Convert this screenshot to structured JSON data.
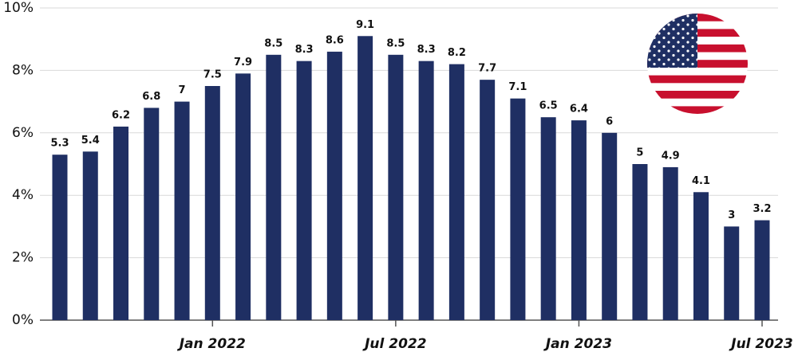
{
  "chart_data": {
    "type": "bar",
    "categories": [
      null,
      null,
      null,
      null,
      null,
      "Jan 2022",
      null,
      null,
      null,
      null,
      null,
      "Jul 2022",
      null,
      null,
      null,
      null,
      null,
      "Jan 2023",
      null,
      null,
      null,
      null,
      null,
      "Jul 2023"
    ],
    "values": [
      5.3,
      5.4,
      6.2,
      6.8,
      7,
      7.5,
      7.9,
      8.5,
      8.3,
      8.6,
      9.1,
      8.5,
      8.3,
      8.2,
      7.7,
      7.1,
      6.5,
      6.4,
      6,
      5,
      4.9,
      4.1,
      3,
      3.2
    ],
    "color": "#1f2f63",
    "ylim": [
      0,
      10
    ],
    "yticks": [
      {
        "value": 0,
        "label": "0%"
      },
      {
        "value": 2,
        "label": "2%"
      },
      {
        "value": 4,
        "label": "4%"
      },
      {
        "value": 6,
        "label": "6%"
      },
      {
        "value": 8,
        "label": "8%"
      },
      {
        "value": 10,
        "label": "10%"
      }
    ],
    "grid": true
  }
}
